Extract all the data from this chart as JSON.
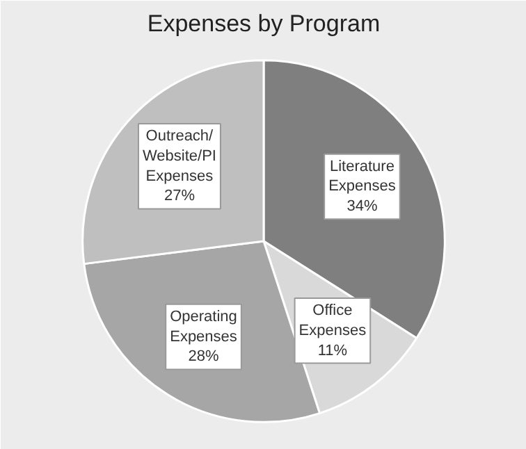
{
  "chart_data": {
    "type": "pie",
    "title": "Expenses by Program",
    "categories": [
      "Literature Expenses",
      "Office Expenses",
      "Operating Expenses",
      "Outreach/Website/PI Expenses"
    ],
    "values": [
      34,
      11,
      28,
      27
    ],
    "colors": [
      "#7f7f7f",
      "#d9d9d9",
      "#a6a6a6",
      "#bfbfbf"
    ],
    "value_labels": [
      "34%",
      "11%",
      "28%",
      "27%"
    ]
  }
}
